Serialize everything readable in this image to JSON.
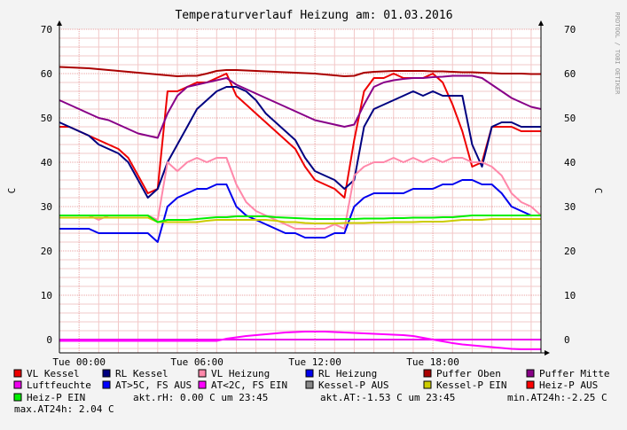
{
  "chart_data": {
    "type": "line",
    "title": "Temperaturverlauf Heizung am: 01.03.2016",
    "ylabel": "C",
    "ylabel_right": "C",
    "watermark": "RRDTOOL / TOBI OETIKER",
    "ylim": [
      -3,
      70
    ],
    "yticks": [
      0,
      10,
      20,
      30,
      40,
      50,
      60,
      70
    ],
    "xlim_hours": [
      -1.0,
      23.5
    ],
    "xticks": [
      {
        "hour": 0,
        "label": "Tue 00:00"
      },
      {
        "hour": 6,
        "label": "Tue 06:00"
      },
      {
        "hour": 12,
        "label": "Tue 12:00"
      },
      {
        "hour": 18,
        "label": "Tue 18:00"
      }
    ],
    "grid": true,
    "legend_position": "bottom",
    "series": [
      {
        "name": "VL Kessel",
        "color": "#ee0000",
        "x": [
          -1,
          -0.5,
          0,
          0.5,
          1,
          1.5,
          2,
          2.5,
          3,
          3.5,
          4,
          4.5,
          5,
          5.5,
          6,
          6.5,
          7,
          7.5,
          8,
          8.5,
          9,
          9.5,
          10,
          10.5,
          11,
          11.5,
          12,
          12.5,
          13,
          13.5,
          14,
          14.5,
          15,
          15.5,
          16,
          16.5,
          17,
          17.5,
          18,
          18.5,
          19,
          19.5,
          20,
          20.5,
          21,
          21.5,
          22,
          22.5,
          23,
          23.5
        ],
        "values": [
          48,
          48,
          47,
          46,
          45,
          44,
          43,
          41,
          37,
          33,
          34,
          56,
          56,
          57,
          58,
          58,
          59,
          60,
          55,
          53,
          51,
          49,
          47,
          45,
          43,
          39,
          36,
          35,
          34,
          32,
          45,
          56,
          59,
          59,
          60,
          59,
          59,
          59,
          60,
          58,
          53,
          47,
          39,
          40,
          48,
          48,
          48,
          47,
          47,
          47
        ]
      },
      {
        "name": "RL Kessel",
        "color": "#000080",
        "x": [
          -1,
          -0.5,
          0,
          0.5,
          1,
          1.5,
          2,
          2.5,
          3,
          3.5,
          4,
          4.5,
          5,
          5.5,
          6,
          6.5,
          7,
          7.5,
          8,
          8.5,
          9,
          9.5,
          10,
          10.5,
          11,
          11.5,
          12,
          12.5,
          13,
          13.5,
          14,
          14.5,
          15,
          15.5,
          16,
          16.5,
          17,
          17.5,
          18,
          18.5,
          19,
          19.5,
          20,
          20.5,
          21,
          21.5,
          22,
          22.5,
          23,
          23.5
        ],
        "values": [
          49,
          48,
          47,
          46,
          44,
          43,
          42,
          40,
          36,
          32,
          34,
          40,
          44,
          48,
          52,
          54,
          56,
          57,
          57,
          56,
          54,
          51,
          49,
          47,
          45,
          41,
          38,
          37,
          36,
          34,
          36,
          48,
          52,
          53,
          54,
          55,
          56,
          55,
          56,
          55,
          55,
          55,
          44,
          39,
          48,
          49,
          49,
          48,
          48,
          48
        ]
      },
      {
        "name": "VL Heizung",
        "color": "#ff88aa",
        "x": [
          -1,
          -0.5,
          0,
          0.5,
          1,
          1.5,
          2,
          2.5,
          3,
          3.5,
          4,
          4.5,
          5,
          5.5,
          6,
          6.5,
          7,
          7.5,
          8,
          8.5,
          9,
          9.5,
          10,
          10.5,
          11,
          11.5,
          12,
          12.5,
          13,
          13.5,
          14,
          14.5,
          15,
          15.5,
          16,
          16.5,
          17,
          17.5,
          18,
          18.5,
          19,
          19.5,
          20,
          20.5,
          21,
          21.5,
          22,
          22.5,
          23,
          23.5
        ],
        "values": [
          28,
          28,
          28,
          28,
          27,
          28,
          28,
          28,
          28,
          28,
          27,
          40,
          38,
          40,
          41,
          40,
          41,
          41,
          35,
          31,
          29,
          28,
          27,
          26,
          25,
          25,
          25,
          25,
          26,
          25,
          37,
          39,
          40,
          40,
          41,
          40,
          41,
          40,
          41,
          40,
          41,
          41,
          40,
          40,
          39,
          37,
          33,
          31,
          30,
          28
        ]
      },
      {
        "name": "RL Heizung",
        "color": "#0000ee",
        "x": [
          -1,
          -0.5,
          0,
          0.5,
          1,
          1.5,
          2,
          2.5,
          3,
          3.5,
          4,
          4.5,
          5,
          5.5,
          6,
          6.5,
          7,
          7.5,
          8,
          8.5,
          9,
          9.5,
          10,
          10.5,
          11,
          11.5,
          12,
          12.5,
          13,
          13.5,
          14,
          14.5,
          15,
          15.5,
          16,
          16.5,
          17,
          17.5,
          18,
          18.5,
          19,
          19.5,
          20,
          20.5,
          21,
          21.5,
          22,
          22.5,
          23,
          23.5
        ],
        "values": [
          25,
          25,
          25,
          25,
          24,
          24,
          24,
          24,
          24,
          24,
          22,
          30,
          32,
          33,
          34,
          34,
          35,
          35,
          30,
          28,
          27,
          26,
          25,
          24,
          24,
          23,
          23,
          23,
          24,
          24,
          30,
          32,
          33,
          33,
          33,
          33,
          34,
          34,
          34,
          35,
          35,
          36,
          36,
          35,
          35,
          33,
          30,
          29,
          28,
          28
        ]
      },
      {
        "name": "Puffer Oben",
        "color": "#aa0000",
        "x": [
          -1,
          -0.5,
          0,
          0.5,
          1,
          1.5,
          2,
          2.5,
          3,
          3.5,
          4,
          4.5,
          5,
          5.5,
          6,
          6.5,
          7,
          7.5,
          8,
          8.5,
          9,
          9.5,
          10,
          10.5,
          11,
          11.5,
          12,
          12.5,
          13,
          13.5,
          14,
          14.5,
          15,
          15.5,
          16,
          16.5,
          17,
          17.5,
          18,
          18.5,
          19,
          19.5,
          20,
          20.5,
          21,
          21.5,
          22,
          22.5,
          23,
          23.5
        ],
        "values": [
          61.5,
          61.4,
          61.3,
          61.2,
          61,
          60.8,
          60.6,
          60.4,
          60.2,
          60,
          59.8,
          59.6,
          59.4,
          59.5,
          59.5,
          60,
          60.6,
          60.8,
          60.8,
          60.7,
          60.6,
          60.5,
          60.4,
          60.3,
          60.2,
          60.1,
          60,
          59.8,
          59.6,
          59.4,
          59.5,
          60.2,
          60.4,
          60.5,
          60.6,
          60.6,
          60.6,
          60.6,
          60.5,
          60.5,
          60.4,
          60.3,
          60.3,
          60.2,
          60.1,
          60,
          60,
          60,
          59.9,
          59.9
        ]
      },
      {
        "name": "Puffer Mitte",
        "color": "#880088",
        "x": [
          -1,
          -0.5,
          0,
          0.5,
          1,
          1.5,
          2,
          2.5,
          3,
          3.5,
          4,
          4.5,
          5,
          5.5,
          6,
          6.5,
          7,
          7.5,
          8,
          8.5,
          9,
          9.5,
          10,
          10.5,
          11,
          11.5,
          12,
          12.5,
          13,
          13.5,
          14,
          14.5,
          15,
          15.5,
          16,
          16.5,
          17,
          17.5,
          18,
          18.5,
          19,
          19.5,
          20,
          20.5,
          21,
          21.5,
          22,
          22.5,
          23,
          23.5
        ],
        "values": [
          54,
          53,
          52,
          51,
          50,
          49.5,
          48.5,
          47.5,
          46.5,
          46,
          45.5,
          51,
          55,
          57,
          57.5,
          58,
          58.5,
          59,
          57.5,
          56.5,
          55.5,
          54.5,
          53.5,
          52.5,
          51.5,
          50.5,
          49.5,
          49,
          48.5,
          48,
          48.5,
          53,
          57,
          58,
          58.5,
          58.8,
          59,
          59,
          59.2,
          59.3,
          59.5,
          59.5,
          59.5,
          59,
          57.5,
          56,
          54.5,
          53.5,
          52.5,
          52
        ]
      },
      {
        "name": "Luftfeuchte",
        "color": "#ee00ee",
        "x": [
          -1,
          0,
          1,
          2,
          3,
          4,
          5,
          6,
          7,
          8,
          9,
          10,
          11,
          12,
          13,
          14,
          15,
          16,
          17,
          18,
          19,
          20,
          21,
          22,
          23,
          23.5
        ],
        "values": [
          0,
          0,
          0,
          0,
          0,
          0,
          0,
          0,
          0,
          0,
          0,
          0,
          0,
          0,
          0,
          0,
          0,
          0,
          0,
          0,
          0,
          0,
          0,
          0,
          0,
          0
        ]
      },
      {
        "name": "AT>5C, FS AUS",
        "color": "#0000ff",
        "x": [],
        "values": []
      },
      {
        "name": "AT<2C, FS EIN",
        "color": "#ff00ff",
        "x": [
          -1,
          -0.5,
          0,
          0.5,
          1,
          1.5,
          2,
          2.5,
          3,
          3.5,
          4,
          4.5,
          5,
          5.5,
          6,
          6.5,
          7,
          7.5,
          8,
          8.5,
          9,
          9.5,
          10,
          10.5,
          11,
          11.5,
          12,
          12.5,
          13,
          13.5,
          14,
          14.5,
          15,
          15.5,
          16,
          16.5,
          17,
          17.5,
          18,
          18.5,
          19,
          19.5,
          20,
          20.5,
          21,
          21.5,
          22,
          22.5,
          23,
          23.5
        ],
        "values": [
          -0.3,
          -0.3,
          -0.3,
          -0.3,
          -0.3,
          -0.3,
          -0.3,
          -0.3,
          -0.3,
          -0.3,
          -0.3,
          -0.3,
          -0.3,
          -0.3,
          -0.3,
          -0.3,
          -0.3,
          0.2,
          0.5,
          0.8,
          1,
          1.2,
          1.4,
          1.6,
          1.7,
          1.8,
          1.8,
          1.8,
          1.7,
          1.6,
          1.5,
          1.4,
          1.3,
          1.2,
          1.1,
          1,
          0.8,
          0.4,
          0,
          -0.4,
          -0.8,
          -1.1,
          -1.3,
          -1.5,
          -1.7,
          -1.9,
          -2.1,
          -2.2,
          -2.2,
          -2.2
        ]
      },
      {
        "name": "Kessel-P AUS",
        "color": "#888888",
        "x": [],
        "values": []
      },
      {
        "name": "Kessel-P EIN",
        "color": "#cccc00",
        "x": [
          -1,
          -0.5,
          0,
          0.5,
          1,
          1.5,
          2,
          2.5,
          3,
          3.5,
          4,
          4.5,
          5,
          5.5,
          6,
          6.5,
          7,
          7.5,
          8,
          8.5,
          9,
          9.5,
          10,
          10.5,
          11,
          11.5,
          12,
          12.5,
          13,
          13.5,
          14,
          14.5,
          15,
          15.5,
          16,
          16.5,
          17,
          17.5,
          18,
          18.5,
          19,
          19.5,
          20,
          20.5,
          21,
          21.5,
          22,
          22.5,
          23,
          23.5
        ],
        "values": [
          27.5,
          27.5,
          27.5,
          27.5,
          27.5,
          27.5,
          27.5,
          27.5,
          27.5,
          27.5,
          26.5,
          26.5,
          26.5,
          26.5,
          26.5,
          26.8,
          27,
          27,
          27,
          27,
          27,
          27,
          26.8,
          26.5,
          26.5,
          26.3,
          26.2,
          26.2,
          26.2,
          26.3,
          26.3,
          26.3,
          26.4,
          26.4,
          26.5,
          26.5,
          26.5,
          26.6,
          26.6,
          26.6,
          26.8,
          27,
          27,
          27,
          27.2,
          27.2,
          27.2,
          27.2,
          27.2,
          27.2
        ]
      },
      {
        "name": "Heiz-P AUS",
        "color": "#ff0000",
        "x": [],
        "values": []
      },
      {
        "name": "Heiz-P EIN",
        "color": "#00ee00",
        "x": [
          -1,
          -0.5,
          0,
          0.5,
          1,
          1.5,
          2,
          2.5,
          3,
          3.5,
          4,
          4.5,
          5,
          5.5,
          6,
          6.5,
          7,
          7.5,
          8,
          8.5,
          9,
          9.5,
          10,
          10.5,
          11,
          11.5,
          12,
          12.5,
          13,
          13.5,
          14,
          14.5,
          15,
          15.5,
          16,
          16.5,
          17,
          17.5,
          18,
          18.5,
          19,
          19.5,
          20,
          20.5,
          21,
          21.5,
          22,
          22.5,
          23,
          23.5
        ],
        "values": [
          28,
          28,
          28,
          28,
          28,
          28,
          28,
          28,
          28,
          28,
          26.5,
          27,
          27,
          27,
          27.2,
          27.4,
          27.6,
          27.6,
          27.8,
          27.8,
          27.8,
          27.8,
          27.6,
          27.5,
          27.4,
          27.3,
          27.2,
          27.2,
          27.2,
          27.2,
          27.2,
          27.3,
          27.3,
          27.3,
          27.4,
          27.4,
          27.5,
          27.5,
          27.5,
          27.6,
          27.6,
          27.8,
          28,
          28,
          28,
          28,
          28,
          28,
          28,
          28
        ]
      }
    ],
    "stats": [
      "akt.rH: 0.00 C um 23:45",
      "akt.AT:-1.53 C um 23:45",
      "min.AT24h:-2.25 C",
      "max.AT24h: 2.04 C"
    ]
  }
}
